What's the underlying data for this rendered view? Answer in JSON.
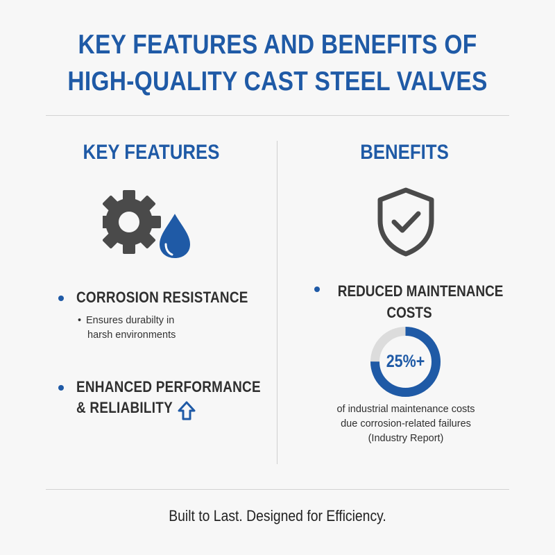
{
  "title": {
    "line1": "KEY FEATURES AND BENEFITS OF",
    "line2": "HIGH-QUALITY CAST STEEL VALVES"
  },
  "features": {
    "heading": "KEY FEATURES",
    "icon": "gear-with-water-drop-icon",
    "items": [
      {
        "label": "CORROSION RESISTANCE",
        "sub_line1": "Ensures durabilty in",
        "sub_line2": "harsh environments"
      },
      {
        "label_line1": "ENHANCED PERFORMANCE",
        "label_line2": "& RELIABILITY",
        "icon": "arrow-up-icon"
      }
    ]
  },
  "benefits": {
    "heading": "BENEFITS",
    "icon": "shield-check-icon",
    "items": [
      {
        "label_line1": "REDUCED MAINTENANCE",
        "label_line2": "COSTS",
        "stat_label": "25%+",
        "stat_fraction": 0.75,
        "desc_line1": "of industrial maintenance costs",
        "desc_line2": "due corrosion-related failures",
        "desc_line3": "(Industry Report)"
      }
    ]
  },
  "footer": "Built to Last. Designed for Efficiency.",
  "colors": {
    "accent": "#1f5aa6",
    "icon_gray": "#4a4a4a",
    "donut_track": "#dcdcdc",
    "background": "#f7f7f7"
  }
}
